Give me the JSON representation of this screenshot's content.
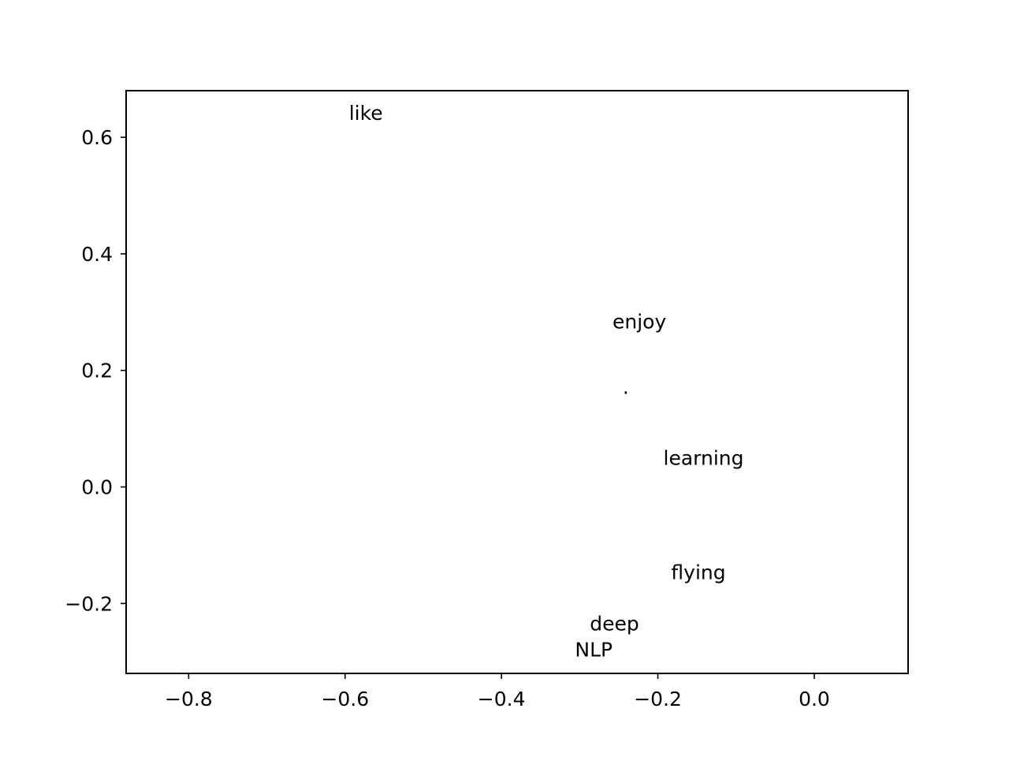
{
  "chart_data": {
    "type": "scatter",
    "title": "",
    "xlabel": "",
    "ylabel": "",
    "xlim": [
      -0.88,
      0.12
    ],
    "ylim": [
      -0.32,
      0.68
    ],
    "xticks": [
      -0.8,
      -0.6,
      -0.4,
      -0.2,
      0.0
    ],
    "yticks": [
      -0.2,
      0.0,
      0.2,
      0.4,
      0.6
    ],
    "xtick_labels": [
      "−0.8",
      "−0.6",
      "−0.4",
      "−0.2",
      "0.0"
    ],
    "ytick_labels": [
      "−0.2",
      "0.0",
      "0.2",
      "0.4",
      "0.6"
    ],
    "grid": false,
    "points": [
      {
        "label": "like",
        "x": -0.595,
        "y": 0.63
      },
      {
        "label": "enjoy",
        "x": -0.258,
        "y": 0.272
      },
      {
        "label": ".",
        "x": -0.245,
        "y": 0.16
      },
      {
        "label": "learning",
        "x": -0.193,
        "y": 0.038
      },
      {
        "label": "flying",
        "x": -0.183,
        "y": -0.158
      },
      {
        "label": "deep",
        "x": -0.287,
        "y": -0.246
      },
      {
        "label": "NLP",
        "x": -0.306,
        "y": -0.291
      }
    ]
  }
}
